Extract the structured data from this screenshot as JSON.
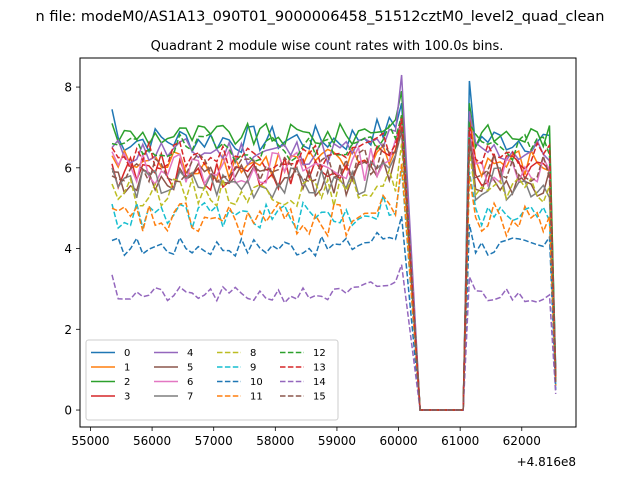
{
  "figure": {
    "suptitle": "n file: modeM0/AS1A13_090T01_9000006458_51512cztM0_level2_quad_clean",
    "offset_label": "+4.816e8"
  },
  "chart_data": {
    "type": "line",
    "title": "Quadrant 2 module wise count rates with 100.0s bins.",
    "xlabel": "",
    "ylabel": "",
    "xlim": [
      54830,
      62880
    ],
    "ylim": [
      -0.42,
      8.72
    ],
    "x_offset": 481600000,
    "x_ticks": [
      55000,
      56000,
      57000,
      58000,
      59000,
      60000,
      61000,
      62000
    ],
    "x_tick_labels": [
      "55000",
      "56000",
      "57000",
      "58000",
      "59000",
      "60000",
      "61000",
      "62000"
    ],
    "y_ticks": [
      0,
      2,
      4,
      6,
      8
    ],
    "y_tick_labels": [
      "0",
      "2",
      "4",
      "6",
      "8"
    ],
    "grid": false,
    "legend_position": "lower-left",
    "legend_columns": 4,
    "series": [
      {
        "name": "0",
        "color": "#1f77b4",
        "dash": "solid",
        "level": 6.7,
        "spread": 0.35,
        "peak1": 7.6,
        "peak2": 8.15,
        "start": 7.45,
        "end": 1.0
      },
      {
        "name": "1",
        "color": "#ff7f0e",
        "dash": "solid",
        "level": 6.1,
        "spread": 0.4,
        "peak1": 7.1,
        "peak2": 7.3,
        "start": 6.3,
        "end": 0.8
      },
      {
        "name": "2",
        "color": "#2ca02c",
        "dash": "solid",
        "level": 6.8,
        "spread": 0.3,
        "peak1": 7.9,
        "peak2": 7.6,
        "start": 7.1,
        "end": 0.9
      },
      {
        "name": "3",
        "color": "#d62728",
        "dash": "solid",
        "level": 5.9,
        "spread": 0.45,
        "peak1": 7.3,
        "peak2": 7.2,
        "start": 6.1,
        "end": 0.7
      },
      {
        "name": "4",
        "color": "#9467bd",
        "dash": "solid",
        "level": 6.4,
        "spread": 0.35,
        "peak1": 8.3,
        "peak2": 7.4,
        "start": 6.5,
        "end": 0.9
      },
      {
        "name": "5",
        "color": "#8c564b",
        "dash": "solid",
        "level": 5.7,
        "spread": 0.4,
        "peak1": 7.0,
        "peak2": 6.9,
        "start": 5.9,
        "end": 0.8
      },
      {
        "name": "6",
        "color": "#e377c2",
        "dash": "solid",
        "level": 6.0,
        "spread": 0.45,
        "peak1": 7.2,
        "peak2": 7.0,
        "start": 6.4,
        "end": 0.8
      },
      {
        "name": "7",
        "color": "#7f7f7f",
        "dash": "solid",
        "level": 5.6,
        "spread": 0.4,
        "peak1": 6.9,
        "peak2": 6.8,
        "start": 6.0,
        "end": 0.7
      },
      {
        "name": "8",
        "color": "#bcbd22",
        "dash": "dashed",
        "level": 5.4,
        "spread": 0.35,
        "peak1": 6.6,
        "peak2": 6.4,
        "start": 5.6,
        "end": 0.7
      },
      {
        "name": "9",
        "color": "#17becf",
        "dash": "dashed",
        "level": 4.8,
        "spread": 0.35,
        "peak1": 6.0,
        "peak2": 5.9,
        "start": 5.1,
        "end": 0.6
      },
      {
        "name": "10",
        "color": "#1f77b4",
        "dash": "dashed",
        "level": 4.05,
        "spread": 0.25,
        "peak1": 4.8,
        "peak2": 4.6,
        "start": 4.2,
        "end": 0.5
      },
      {
        "name": "11",
        "color": "#ff7f0e",
        "dash": "dashed",
        "level": 4.7,
        "spread": 0.45,
        "peak1": 6.1,
        "peak2": 5.8,
        "start": 5.0,
        "end": 0.6
      },
      {
        "name": "12",
        "color": "#2ca02c",
        "dash": "dashed",
        "level": 6.5,
        "spread": 0.35,
        "peak1": 7.3,
        "peak2": 7.1,
        "start": 6.6,
        "end": 0.8
      },
      {
        "name": "13",
        "color": "#d62728",
        "dash": "dashed",
        "level": 6.3,
        "spread": 0.35,
        "peak1": 7.2,
        "peak2": 7.0,
        "start": 6.5,
        "end": 0.8
      },
      {
        "name": "14",
        "color": "#9467bd",
        "dash": "dashed",
        "level": 2.85,
        "spread": 0.2,
        "peak1": 3.6,
        "peak2": 3.3,
        "start": 3.35,
        "end": 0.4
      },
      {
        "name": "15",
        "color": "#8c564b",
        "dash": "dashed",
        "level": 6.0,
        "spread": 0.35,
        "peak1": 6.9,
        "peak2": 6.6,
        "start": 5.8,
        "end": 0.7
      }
    ],
    "x_start": 55350,
    "x_bin": 100,
    "bins_before_gap": 48,
    "gap_drop_x": 60350,
    "gap_rise_x": 61050,
    "post_gap_start": 61150,
    "x_end": 62550
  }
}
